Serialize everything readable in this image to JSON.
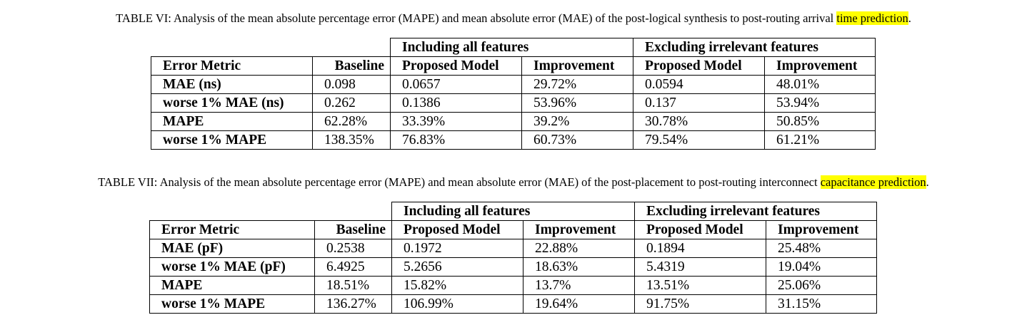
{
  "table6": {
    "caption_main": "TABLE VI: Analysis of the mean absolute percentage error (MAPE) and mean absolute error (MAE) of the post-logical synthesis to post-routing arrival",
    "caption_highlight": "time prediction",
    "caption_end": ".",
    "group_left": "Including all features",
    "group_right": "Excluding irrelevant features",
    "headers": [
      "Error Metric",
      "Baseline",
      "Proposed Model",
      "Improvement",
      "Proposed Model",
      "Improvement"
    ],
    "rows": [
      [
        "MAE (ns)",
        "0.098",
        "0.0657",
        "29.72%",
        "0.0594",
        "48.01%"
      ],
      [
        "worse 1% MAE (ns)",
        "0.262",
        "0.1386",
        "53.96%",
        "0.137",
        "53.94%"
      ],
      [
        "MAPE",
        "62.28%",
        "33.39%",
        "39.2%",
        "30.78%",
        "50.85%"
      ],
      [
        "worse 1% MAPE",
        "138.35%",
        "76.83%",
        "60.73%",
        "79.54%",
        "61.21%"
      ]
    ]
  },
  "table7": {
    "caption_main": "TABLE VII: Analysis of the mean absolute percentage error (MAPE) and mean absolute error (MAE) of the post-placement to post-routing interconnect",
    "caption_highlight": "capacitance prediction",
    "caption_end": ".",
    "group_left": "Including all features",
    "group_right": "Excluding irrelevant features",
    "headers": [
      "Error Metric",
      "Baseline",
      "Proposed Model",
      "Improvement",
      "Proposed Model",
      "Improvement"
    ],
    "rows": [
      [
        "MAE (pF)",
        "0.2538",
        "0.1972",
        "22.88%",
        "0.1894",
        "25.48%"
      ],
      [
        "worse 1% MAE (pF)",
        "6.4925",
        "5.2656",
        "18.63%",
        "5.4319",
        "19.04%"
      ],
      [
        "MAPE",
        "18.51%",
        "15.82%",
        "13.7%",
        "13.51%",
        "25.06%"
      ],
      [
        "worse 1% MAPE",
        "136.27%",
        "106.99%",
        "19.64%",
        "91.75%",
        "31.15%"
      ]
    ]
  },
  "colors": {
    "highlight": "#ffff00",
    "text": "#000000",
    "background": "#ffffff"
  }
}
